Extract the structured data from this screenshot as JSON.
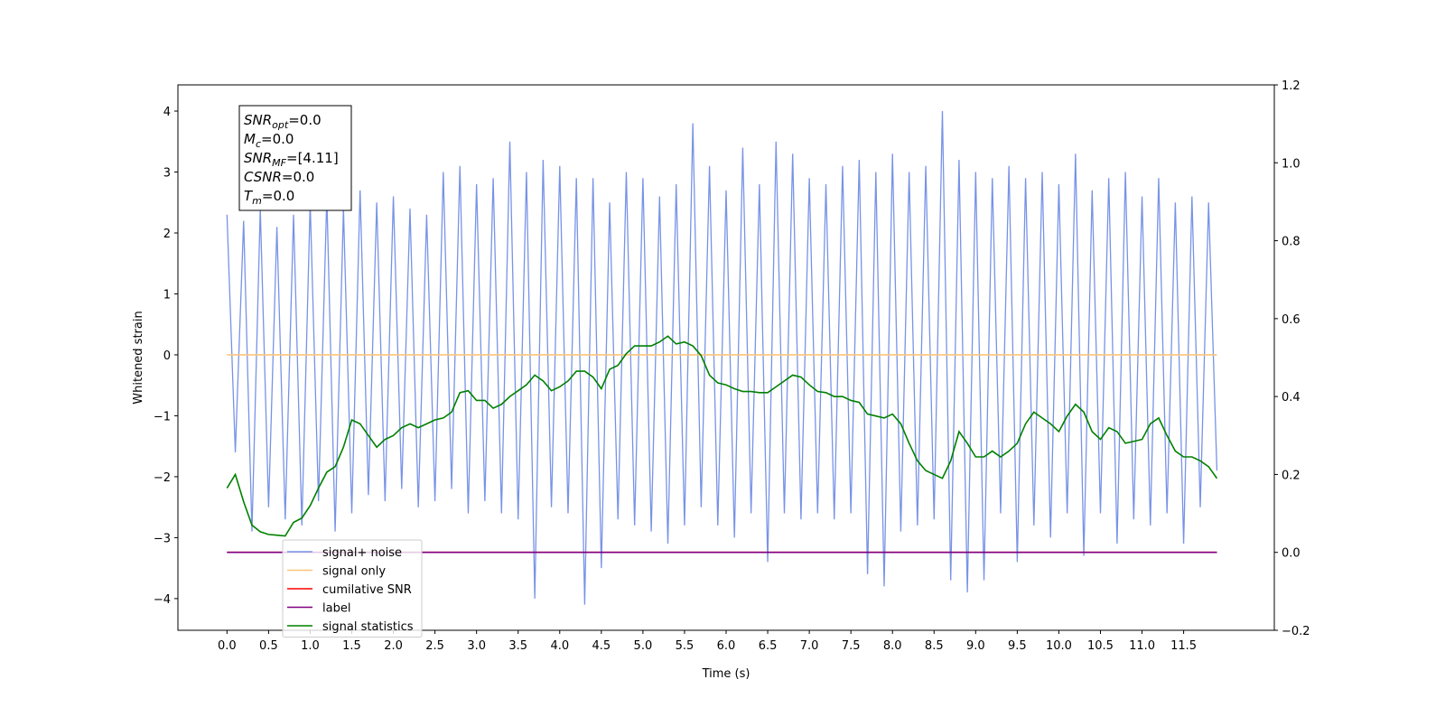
{
  "chart_data": {
    "type": "line",
    "xlabel": "Time (s)",
    "ylabel": "Whitened strain",
    "x": [
      0,
      0.1,
      0.2,
      0.3,
      0.4,
      0.5,
      0.6,
      0.7,
      0.8,
      0.9,
      1,
      1.1,
      1.2,
      1.3,
      1.4,
      1.5,
      1.6,
      1.7,
      1.8,
      1.9,
      2,
      2.1,
      2.2,
      2.3,
      2.4,
      2.5,
      2.6,
      2.7,
      2.8,
      2.9,
      3,
      3.1,
      3.2,
      3.3,
      3.4,
      3.5,
      3.6,
      3.7,
      3.8,
      3.9,
      4,
      4.1,
      4.2,
      4.3,
      4.4,
      4.5,
      4.6,
      4.7,
      4.8,
      4.9,
      5,
      5.1,
      5.2,
      5.3,
      5.4,
      5.5,
      5.6,
      5.7,
      5.8,
      5.9,
      6,
      6.1,
      6.2,
      6.3,
      6.4,
      6.5,
      6.6,
      6.7,
      6.8,
      6.9,
      7,
      7.1,
      7.2,
      7.3,
      7.4,
      7.5,
      7.6,
      7.7,
      7.8,
      7.9,
      8,
      8.1,
      8.2,
      8.3,
      8.4,
      8.5,
      8.6,
      8.7,
      8.8,
      8.9,
      9,
      9.1,
      9.2,
      9.3,
      9.4,
      9.5,
      9.6,
      9.7,
      9.8,
      9.9,
      10,
      10.1,
      10.2,
      10.3,
      10.4,
      10.5,
      10.6,
      10.7,
      10.8,
      10.9,
      11,
      11.1,
      11.2,
      11.3,
      11.4,
      11.5,
      11.6,
      11.7,
      11.8,
      11.9
    ],
    "series": [
      {
        "name": "signal+ noise",
        "color": "#7893e6",
        "axis": "y",
        "values": [
          2.3,
          -1.6,
          2.2,
          -2.9,
          2.4,
          -2.5,
          2.1,
          -2.7,
          2.3,
          -2.8,
          2.5,
          -2.4,
          2.6,
          -2.9,
          2.4,
          -2.6,
          2.7,
          -2.3,
          2.5,
          -2.4,
          2.6,
          -2.2,
          2.4,
          -2.5,
          2.3,
          -2.4,
          3.0,
          -2.2,
          3.1,
          -2.6,
          2.8,
          -2.4,
          2.9,
          -2.6,
          3.5,
          -2.7,
          3.0,
          -4.0,
          3.2,
          -2.5,
          3.1,
          -2.6,
          2.9,
          -4.1,
          2.9,
          -3.5,
          2.5,
          -2.7,
          3.0,
          -2.8,
          2.9,
          -2.9,
          2.6,
          -3.1,
          2.8,
          -2.8,
          3.8,
          -2.5,
          3.1,
          -2.8,
          2.7,
          -3.0,
          3.4,
          -2.6,
          2.8,
          -3.4,
          3.5,
          -2.6,
          3.3,
          -2.7,
          2.9,
          -2.6,
          2.8,
          -2.7,
          3.1,
          -2.6,
          3.2,
          -3.6,
          3.0,
          -3.8,
          3.3,
          -2.9,
          3.0,
          -2.8,
          3.1,
          -2.7,
          4.0,
          -3.7,
          3.2,
          -3.9,
          3.0,
          -3.7,
          2.9,
          -2.6,
          3.1,
          -3.4,
          2.9,
          -2.8,
          3.0,
          -3.0,
          2.8,
          -2.6,
          3.3,
          -3.3,
          2.7,
          -2.6,
          2.9,
          -3.1,
          3.0,
          -2.7,
          2.6,
          -2.8,
          2.9,
          -2.6,
          2.5,
          -3.1,
          2.6,
          -2.5,
          2.5,
          -1.9
        ]
      },
      {
        "name": "signal only",
        "color": "#fdc57a",
        "axis": "y",
        "values": [
          0,
          0,
          0,
          0,
          0,
          0,
          0,
          0,
          0,
          0,
          0,
          0,
          0,
          0,
          0,
          0,
          0,
          0,
          0,
          0,
          0,
          0,
          0,
          0,
          0,
          0,
          0,
          0,
          0,
          0,
          0,
          0,
          0,
          0,
          0,
          0,
          0,
          0,
          0,
          0,
          0,
          0,
          0,
          0,
          0,
          0,
          0,
          0,
          0,
          0,
          0,
          0,
          0,
          0,
          0,
          0,
          0,
          0,
          0,
          0,
          0,
          0,
          0,
          0,
          0,
          0,
          0,
          0,
          0,
          0,
          0,
          0,
          0,
          0,
          0,
          0,
          0,
          0,
          0,
          0,
          0,
          0,
          0,
          0,
          0,
          0,
          0,
          0,
          0,
          0,
          0,
          0,
          0,
          0,
          0,
          0,
          0,
          0,
          0,
          0,
          0,
          0,
          0,
          0,
          0,
          0,
          0,
          0,
          0,
          0,
          0,
          0,
          0,
          0,
          0,
          0,
          0,
          0,
          0,
          0
        ]
      },
      {
        "name": "cumilative SNR",
        "color": "#ff0000",
        "axis": "y2",
        "values": [
          0,
          0,
          0,
          0,
          0,
          0,
          0,
          0,
          0,
          0,
          0,
          0,
          0,
          0,
          0,
          0,
          0,
          0,
          0,
          0,
          0,
          0,
          0,
          0,
          0,
          0,
          0,
          0,
          0,
          0,
          0,
          0,
          0,
          0,
          0,
          0,
          0,
          0,
          0,
          0,
          0,
          0,
          0,
          0,
          0,
          0,
          0,
          0,
          0,
          0,
          0,
          0,
          0,
          0,
          0,
          0,
          0,
          0,
          0,
          0,
          0,
          0,
          0,
          0,
          0,
          0,
          0,
          0,
          0,
          0,
          0,
          0,
          0,
          0,
          0,
          0,
          0,
          0,
          0,
          0,
          0,
          0,
          0,
          0,
          0,
          0,
          0,
          0,
          0,
          0,
          0,
          0,
          0,
          0,
          0,
          0,
          0,
          0,
          0,
          0,
          0,
          0,
          0,
          0,
          0,
          0,
          0,
          0,
          0,
          0,
          0,
          0,
          0,
          0,
          0,
          0,
          0,
          0,
          0,
          0
        ]
      },
      {
        "name": "label",
        "color": "#800080",
        "axis": "y2",
        "values": [
          0,
          0,
          0,
          0,
          0,
          0,
          0,
          0,
          0,
          0,
          0,
          0,
          0,
          0,
          0,
          0,
          0,
          0,
          0,
          0,
          0,
          0,
          0,
          0,
          0,
          0,
          0,
          0,
          0,
          0,
          0,
          0,
          0,
          0,
          0,
          0,
          0,
          0,
          0,
          0,
          0,
          0,
          0,
          0,
          0,
          0,
          0,
          0,
          0,
          0,
          0,
          0,
          0,
          0,
          0,
          0,
          0,
          0,
          0,
          0,
          0,
          0,
          0,
          0,
          0,
          0,
          0,
          0,
          0,
          0,
          0,
          0,
          0,
          0,
          0,
          0,
          0,
          0,
          0,
          0,
          0,
          0,
          0,
          0,
          0,
          0,
          0,
          0,
          0,
          0,
          0,
          0,
          0,
          0,
          0,
          0,
          0,
          0,
          0,
          0,
          0,
          0,
          0,
          0,
          0,
          0,
          0,
          0,
          0,
          0,
          0,
          0,
          0,
          0,
          0,
          0,
          0,
          0,
          0,
          0
        ]
      },
      {
        "name": "signal statistics",
        "color": "#008000",
        "axis": "y2",
        "values": [
          0.165,
          0.2,
          0.13,
          0.07,
          0.053,
          0.046,
          0.044,
          0.042,
          0.077,
          0.088,
          0.12,
          0.165,
          0.206,
          0.22,
          0.27,
          0.34,
          0.33,
          0.3,
          0.27,
          0.29,
          0.3,
          0.32,
          0.33,
          0.32,
          0.33,
          0.34,
          0.345,
          0.36,
          0.41,
          0.415,
          0.39,
          0.39,
          0.37,
          0.38,
          0.4,
          0.415,
          0.43,
          0.455,
          0.44,
          0.415,
          0.425,
          0.44,
          0.465,
          0.465,
          0.45,
          0.42,
          0.47,
          0.48,
          0.51,
          0.53,
          0.53,
          0.53,
          0.54,
          0.555,
          0.535,
          0.54,
          0.53,
          0.505,
          0.455,
          0.435,
          0.43,
          0.42,
          0.413,
          0.413,
          0.41,
          0.41,
          0.425,
          0.44,
          0.455,
          0.45,
          0.43,
          0.413,
          0.41,
          0.4,
          0.4,
          0.39,
          0.385,
          0.355,
          0.35,
          0.345,
          0.355,
          0.33,
          0.28,
          0.235,
          0.21,
          0.2,
          0.19,
          0.235,
          0.31,
          0.28,
          0.245,
          0.245,
          0.26,
          0.245,
          0.26,
          0.28,
          0.33,
          0.36,
          0.345,
          0.33,
          0.31,
          0.35,
          0.38,
          0.36,
          0.31,
          0.29,
          0.32,
          0.31,
          0.28,
          0.285,
          0.29,
          0.33,
          0.345,
          0.3,
          0.26,
          0.245,
          0.245,
          0.235,
          0.22,
          0.19
        ]
      }
    ],
    "xlim": [
      -0.59,
      12.59
    ],
    "xticks": [
      {
        "value": 0,
        "label": "0.0"
      },
      {
        "value": 0.5,
        "label": "0.5"
      },
      {
        "value": 1,
        "label": "1.0"
      },
      {
        "value": 1.5,
        "label": "1.5"
      },
      {
        "value": 2,
        "label": "2.0"
      },
      {
        "value": 2.5,
        "label": "2.5"
      },
      {
        "value": 3,
        "label": "3.0"
      },
      {
        "value": 3.5,
        "label": "3.5"
      },
      {
        "value": 4,
        "label": "4.0"
      },
      {
        "value": 4.5,
        "label": "4.5"
      },
      {
        "value": 5,
        "label": "5.0"
      },
      {
        "value": 5.5,
        "label": "5.5"
      },
      {
        "value": 6,
        "label": "6.0"
      },
      {
        "value": 6.5,
        "label": "6.5"
      },
      {
        "value": 7,
        "label": "7.0"
      },
      {
        "value": 7.5,
        "label": "7.5"
      },
      {
        "value": 8,
        "label": "8.0"
      },
      {
        "value": 8.5,
        "label": "8.5"
      },
      {
        "value": 9,
        "label": "9.0"
      },
      {
        "value": 9.5,
        "label": "9.5"
      },
      {
        "value": 10,
        "label": "10.0"
      },
      {
        "value": 10.5,
        "label": "10.5"
      },
      {
        "value": 11,
        "label": "11.0"
      },
      {
        "value": 11.5,
        "label": "11.5"
      }
    ],
    "ylim": [
      -4.52,
      4.43
    ],
    "yticks": [
      {
        "value": -4,
        "label": "−4"
      },
      {
        "value": -3,
        "label": "−3"
      },
      {
        "value": -2,
        "label": "−2"
      },
      {
        "value": -1,
        "label": "−1"
      },
      0,
      1,
      2,
      3,
      4
    ],
    "y2lim": [
      -0.2,
      1.2
    ],
    "y2ticks": [
      {
        "value": -0.2,
        "label": "−0.2"
      },
      {
        "value": 0,
        "label": "0.0"
      },
      {
        "value": 0.2,
        "label": "0.2"
      },
      {
        "value": 0.4,
        "label": "0.4"
      },
      {
        "value": 0.6,
        "label": "0.6"
      },
      {
        "value": 0.8,
        "label": "0.8"
      },
      {
        "value": 1,
        "label": "1.0"
      },
      {
        "value": 1.2,
        "label": "1.2"
      }
    ],
    "legend": "lower left",
    "annotations": [
      {
        "text": "SNR",
        "sub": "opt",
        "suffix": "=0.0"
      },
      {
        "text": "M",
        "sub": "c",
        "suffix": "=0.0"
      },
      {
        "text": "SNR",
        "sub": "MF",
        "suffix": "=[4.11]"
      },
      {
        "text": "CSNR",
        "suffix": "=0.0"
      },
      {
        "text": "T",
        "sub": "m",
        "suffix": "=0.0"
      }
    ]
  }
}
